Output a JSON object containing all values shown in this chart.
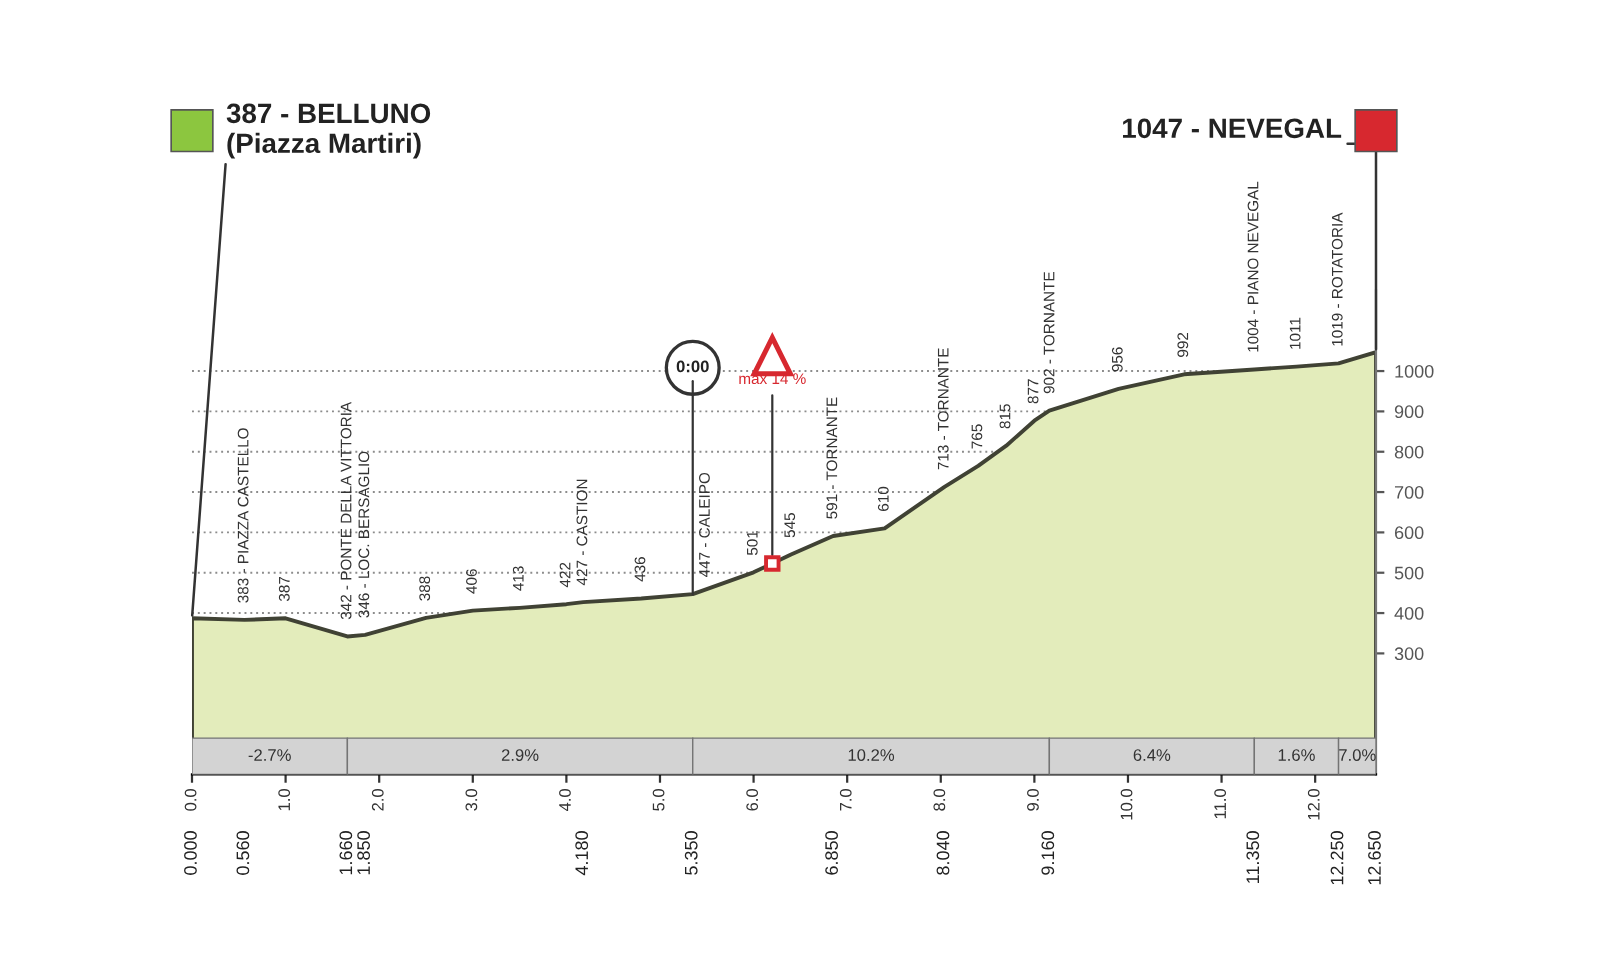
{
  "chart_data": {
    "type": "area",
    "x": [
      0,
      0.56,
      1.0,
      1.66,
      1.85,
      2.5,
      3.0,
      3.5,
      4.0,
      4.18,
      4.8,
      5.35,
      6.0,
      6.4,
      6.85,
      7.4,
      8.04,
      8.4,
      8.7,
      9.0,
      9.16,
      9.9,
      10.6,
      11.35,
      11.8,
      12.25,
      12.65
    ],
    "values": [
      387,
      383,
      387,
      342,
      346,
      388,
      406,
      413,
      422,
      427,
      436,
      447,
      501,
      545,
      591,
      610,
      713,
      765,
      815,
      877,
      902,
      956,
      992,
      1004,
      1011,
      1019,
      1047
    ],
    "color": "#e3ecbb",
    "xlim": [
      0,
      12.65
    ],
    "xticks": [
      {
        "value": 0,
        "label": "0.0"
      },
      {
        "value": 1,
        "label": "1.0"
      },
      {
        "value": 2,
        "label": "2.0"
      },
      {
        "value": 3,
        "label": "3.0"
      },
      {
        "value": 4,
        "label": "4.0"
      },
      {
        "value": 5,
        "label": "5.0"
      },
      {
        "value": 6,
        "label": "6.0"
      },
      {
        "value": 7,
        "label": "7.0"
      },
      {
        "value": 8,
        "label": "8.0"
      },
      {
        "value": 9,
        "label": "9.0"
      },
      {
        "value": 10,
        "label": "10.0"
      },
      {
        "value": 11,
        "label": "11.0"
      },
      {
        "value": 12,
        "label": "12.0"
      }
    ],
    "x2lim": [
      0,
      12.65
    ],
    "x2ticks": [
      {
        "value": 0,
        "label": "0.000"
      },
      {
        "value": 0.56,
        "label": "0.560"
      },
      {
        "value": 1.66,
        "label": "1.660"
      },
      {
        "value": 1.85,
        "label": "1.850"
      },
      {
        "value": 4.18,
        "label": "4.180"
      },
      {
        "value": 5.35,
        "label": "5.350"
      },
      {
        "value": 6.85,
        "label": "6.850"
      },
      {
        "value": 8.04,
        "label": "8.040"
      },
      {
        "value": 9.16,
        "label": "9.160"
      },
      {
        "value": 11.35,
        "label": "11.350"
      },
      {
        "value": 12.25,
        "label": "12.250"
      },
      {
        "value": 12.65,
        "label": "12.650"
      }
    ],
    "ylim": [
      0,
      1200
    ],
    "yticks": [
      300,
      400,
      500,
      600,
      700,
      800,
      900,
      1000
    ],
    "grid": "y",
    "bands": [
      {
        "axis": "x",
        "from": 0,
        "to": 1.66,
        "label": "-2.7%",
        "color": "#d3d3d3"
      },
      {
        "axis": "x",
        "from": 1.66,
        "to": 5.35,
        "label": "2.9%",
        "color": "#d3d3d3"
      },
      {
        "axis": "x",
        "from": 5.35,
        "to": 9.16,
        "label": "10.2%",
        "color": "#d3d3d3"
      },
      {
        "axis": "x",
        "from": 9.16,
        "to": 11.35,
        "label": "6.4%",
        "color": "#d3d3d3"
      },
      {
        "axis": "x",
        "from": 11.35,
        "to": 12.25,
        "label": "1.6%",
        "color": "#d3d3d3"
      },
      {
        "axis": "x",
        "from": 12.25,
        "to": 12.65,
        "label": "7.0%",
        "color": "#d3d3d3"
      }
    ],
    "annotations": [
      {
        "text": "387 - BELLUNO\n(Piazza Martiri)",
        "x": 0,
        "y": 387
      },
      {
        "text": "1047 - NEVEGAL",
        "x": 12.65,
        "y": 1047
      },
      {
        "text": "0:00",
        "x": 5.35,
        "y": 447
      },
      {
        "text": "max 14 %",
        "x": 6.2,
        "y": 523
      },
      {
        "text": "383 - PIAZZA CASTELLO",
        "x": 0.56,
        "y": 383
      },
      {
        "text": "387",
        "x": 1.0,
        "y": 387
      },
      {
        "text": "342 - PONTE DELLA VITTORIA",
        "x": 1.66,
        "y": 342
      },
      {
        "text": "346 - LOC. BERSAGLIO",
        "x": 1.85,
        "y": 346
      },
      {
        "text": "388",
        "x": 2.5,
        "y": 388
      },
      {
        "text": "406",
        "x": 3.0,
        "y": 406
      },
      {
        "text": "413",
        "x": 3.5,
        "y": 413
      },
      {
        "text": "422",
        "x": 4.0,
        "y": 422
      },
      {
        "text": "427 - CASTION",
        "x": 4.18,
        "y": 427
      },
      {
        "text": "436",
        "x": 4.8,
        "y": 436
      },
      {
        "text": "447 - CALEIPO",
        "x": 5.35,
        "y": 447
      },
      {
        "text": "501",
        "x": 6.0,
        "y": 501
      },
      {
        "text": "545",
        "x": 6.4,
        "y": 545
      },
      {
        "text": "591 - TORNANTE",
        "x": 6.85,
        "y": 591
      },
      {
        "text": "610",
        "x": 7.4,
        "y": 610
      },
      {
        "text": "713 - TORNANTE",
        "x": 8.04,
        "y": 713
      },
      {
        "text": "765",
        "x": 8.4,
        "y": 765
      },
      {
        "text": "815",
        "x": 8.7,
        "y": 815
      },
      {
        "text": "877",
        "x": 9.0,
        "y": 877
      },
      {
        "text": "902 - TORNANTE",
        "x": 9.16,
        "y": 902
      },
      {
        "text": "956",
        "x": 9.9,
        "y": 956
      },
      {
        "text": "992",
        "x": 10.6,
        "y": 992
      },
      {
        "text": "1004 - PIANO NEVEGAL",
        "x": 11.35,
        "y": 1004
      },
      {
        "text": "1011",
        "x": 11.8,
        "y": 1011
      },
      {
        "text": "1019 - ROTATORIA",
        "x": 12.25,
        "y": 1019
      }
    ]
  }
}
